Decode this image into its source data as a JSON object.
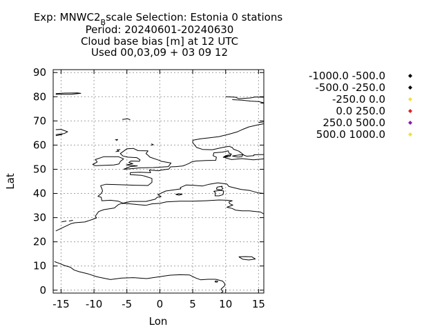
{
  "chart_data": {
    "type": "scatter",
    "title": {
      "line1_pre": "Exp: MNWC2",
      "line1_sub": "B",
      "line1_post": "scale   Selection: Estonia      0 stations",
      "line2": "Period: 20240601-20240630",
      "line3": "Cloud base bias [m] at  12 UTC",
      "line4": "Used 00,03,09 + 03 09 12"
    },
    "xlabel": "Lon",
    "ylabel": "Lat",
    "xlim": [
      -16.2,
      15.8
    ],
    "ylim": [
      -1.2,
      91.2
    ],
    "xticks": [
      -15,
      -10,
      -5,
      0,
      5,
      10,
      15
    ],
    "yticks": [
      0,
      10,
      20,
      30,
      40,
      50,
      60,
      70,
      80,
      90
    ],
    "xtick_labels": [
      "-15",
      "-10",
      "-5",
      "0",
      "5",
      "10",
      "15"
    ],
    "ytick_labels": [
      "0",
      "10",
      "20",
      "30",
      "40",
      "50",
      "60",
      "70",
      "80",
      "90"
    ],
    "grid": true,
    "legend_position": "right",
    "series": [
      {
        "name": "-1000.0 -500.0",
        "color": "#000000",
        "points": []
      },
      {
        "name": "-500.0 -250.0",
        "color": "#000000",
        "points": []
      },
      {
        "name": "-250.0 0.0",
        "color": "#f0e040",
        "points": []
      },
      {
        "name": "0.0 250.0",
        "color": "#e02020",
        "points": []
      },
      {
        "name": "250.0 500.0",
        "color": "#8a1ab0",
        "points": []
      },
      {
        "name": "500.0 1000.0",
        "color": "#f0e040",
        "points": []
      }
    ],
    "coastlines": [
      [
        [
          -15.8,
          81.3
        ],
        [
          -14.5,
          81.5
        ],
        [
          -12.5,
          81.6
        ],
        [
          -12.0,
          81.4
        ],
        [
          -13.5,
          81.0
        ],
        [
          -15.8,
          81.0
        ]
      ],
      [
        [
          -5.7,
          70.6
        ],
        [
          -4.9,
          70.9
        ],
        [
          -4.5,
          70.5
        ]
      ],
      [
        [
          -15.8,
          66.4
        ],
        [
          -15.0,
          66.5
        ],
        [
          -14.0,
          65.5
        ],
        [
          -14.5,
          64.8
        ],
        [
          -15.8,
          64.3
        ]
      ],
      [
        [
          -15.8,
          63.9
        ],
        [
          -14.8,
          64.4
        ]
      ],
      [
        [
          -6.8,
          62.2
        ],
        [
          -6.4,
          62.3
        ],
        [
          -6.6,
          61.8
        ]
      ],
      [
        [
          -9.5,
          53.0
        ],
        [
          -9.8,
          54.0
        ],
        [
          -8.5,
          55.2
        ],
        [
          -6.3,
          55.2
        ],
        [
          -5.5,
          54.3
        ],
        [
          -6.0,
          53.2
        ],
        [
          -6.2,
          52.2
        ],
        [
          -7.0,
          51.8
        ],
        [
          -9.8,
          51.5
        ],
        [
          -10.2,
          52.0
        ],
        [
          -9.5,
          53.0
        ]
      ],
      [
        [
          -5.5,
          50.0
        ],
        [
          -4.0,
          50.3
        ],
        [
          -3.0,
          50.6
        ],
        [
          -1.0,
          50.7
        ],
        [
          1.3,
          51.1
        ],
        [
          1.7,
          52.6
        ],
        [
          0.2,
          53.3
        ],
        [
          0.0,
          53.6
        ],
        [
          -1.5,
          55.0
        ],
        [
          -1.8,
          55.8
        ],
        [
          -2.1,
          56.5
        ],
        [
          -1.8,
          57.6
        ],
        [
          -3.3,
          57.7
        ],
        [
          -4.0,
          58.6
        ],
        [
          -5.0,
          58.5
        ],
        [
          -5.5,
          57.5
        ],
        [
          -6.0,
          56.5
        ],
        [
          -5.6,
          55.5
        ],
        [
          -4.9,
          55.0
        ],
        [
          -3.5,
          54.8
        ],
        [
          -3.0,
          53.9
        ],
        [
          -3.1,
          53.3
        ],
        [
          -4.4,
          53.4
        ],
        [
          -4.7,
          52.8
        ],
        [
          -4.1,
          52.3
        ],
        [
          -5.1,
          51.8
        ],
        [
          -3.4,
          51.4
        ],
        [
          -4.5,
          51.1
        ],
        [
          -5.5,
          50.0
        ]
      ],
      [
        [
          -6.0,
          58.2
        ],
        [
          -6.5,
          58.0
        ],
        [
          -6.2,
          57.5
        ],
        [
          -6.7,
          57.3
        ]
      ],
      [
        [
          -1.3,
          60.5
        ],
        [
          -1.0,
          60.2
        ],
        [
          -1.3,
          59.9
        ]
      ],
      [
        [
          -4.5,
          48.6
        ],
        [
          -3.0,
          48.8
        ],
        [
          -1.4,
          48.6
        ],
        [
          -1.6,
          49.7
        ],
        [
          -0.2,
          49.4
        ],
        [
          0.3,
          49.7
        ],
        [
          1.4,
          50.1
        ],
        [
          1.6,
          51.0
        ],
        [
          2.5,
          51.1
        ],
        [
          3.5,
          51.4
        ],
        [
          4.0,
          51.9
        ],
        [
          4.5,
          52.5
        ],
        [
          4.8,
          53.0
        ],
        [
          5.5,
          53.4
        ],
        [
          7.0,
          53.6
        ],
        [
          8.5,
          53.7
        ],
        [
          8.6,
          55.0
        ],
        [
          8.1,
          55.6
        ],
        [
          8.2,
          56.8
        ],
        [
          9.5,
          57.1
        ],
        [
          10.4,
          57.6
        ],
        [
          10.5,
          56.7
        ],
        [
          10.9,
          56.2
        ],
        [
          9.8,
          55.0
        ],
        [
          10.0,
          54.7
        ],
        [
          10.9,
          54.0
        ],
        [
          12.5,
          54.4
        ],
        [
          14.2,
          53.9
        ],
        [
          15.8,
          54.3
        ]
      ],
      [
        [
          -9.0,
          43.2
        ],
        [
          -8.2,
          43.8
        ],
        [
          -6.0,
          43.6
        ],
        [
          -3.8,
          43.4
        ],
        [
          -1.8,
          43.3
        ],
        [
          -1.2,
          44.6
        ],
        [
          -1.2,
          46.2
        ],
        [
          -2.2,
          47.1
        ],
        [
          -2.8,
          47.5
        ],
        [
          -4.5,
          47.8
        ],
        [
          -4.5,
          48.6
        ]
      ],
      [
        [
          -9.0,
          43.2
        ],
        [
          -8.8,
          42.0
        ],
        [
          -8.7,
          41.0
        ],
        [
          -8.9,
          40.0
        ],
        [
          -9.4,
          38.8
        ],
        [
          -8.9,
          38.4
        ],
        [
          -8.8,
          37.0
        ],
        [
          -7.5,
          37.2
        ],
        [
          -6.3,
          36.8
        ],
        [
          -5.6,
          36.0
        ],
        [
          -4.4,
          36.7
        ],
        [
          -2.1,
          36.7
        ],
        [
          -0.7,
          37.6
        ],
        [
          -0.4,
          38.4
        ],
        [
          0.2,
          38.7
        ],
        [
          -0.3,
          39.5
        ],
        [
          0.9,
          41.0
        ],
        [
          3.2,
          41.9
        ],
        [
          3.1,
          42.4
        ],
        [
          4.0,
          43.5
        ],
        [
          5.0,
          43.4
        ],
        [
          6.5,
          43.1
        ],
        [
          7.5,
          43.8
        ],
        [
          8.8,
          44.4
        ],
        [
          10.2,
          43.9
        ],
        [
          10.5,
          42.9
        ],
        [
          11.2,
          42.4
        ],
        [
          12.3,
          41.7
        ],
        [
          13.7,
          41.2
        ],
        [
          15.0,
          40.2
        ],
        [
          15.8,
          40.0
        ]
      ],
      [
        [
          9.2,
          41.3
        ],
        [
          9.7,
          41.0
        ],
        [
          9.6,
          39.5
        ],
        [
          9.0,
          39.0
        ],
        [
          8.4,
          39.0
        ],
        [
          8.4,
          40.5
        ],
        [
          8.2,
          40.9
        ],
        [
          9.2,
          41.3
        ]
      ],
      [
        [
          9.5,
          43.0
        ],
        [
          9.4,
          42.6
        ],
        [
          9.6,
          42.0
        ],
        [
          9.3,
          41.4
        ],
        [
          8.6,
          41.8
        ],
        [
          8.7,
          42.6
        ],
        [
          9.5,
          43.0
        ]
      ],
      [
        [
          2.4,
          39.6
        ],
        [
          3.0,
          39.9
        ],
        [
          3.4,
          39.6
        ],
        [
          2.9,
          39.3
        ],
        [
          2.4,
          39.6
        ]
      ],
      [
        [
          -5.9,
          35.8
        ],
        [
          -6.3,
          35.4
        ],
        [
          -6.9,
          34.0
        ],
        [
          -8.5,
          33.3
        ],
        [
          -9.3,
          32.5
        ],
        [
          -9.8,
          30.6
        ],
        [
          -9.6,
          29.9
        ],
        [
          -10.2,
          29.3
        ],
        [
          -11.4,
          28.2
        ],
        [
          -12.9,
          27.9
        ],
        [
          -13.5,
          27.5
        ],
        [
          -14.5,
          26.2
        ],
        [
          -15.8,
          24.5
        ]
      ],
      [
        [
          -5.9,
          35.8
        ],
        [
          -5.3,
          35.9
        ],
        [
          -3.0,
          35.3
        ],
        [
          -2.1,
          35.1
        ],
        [
          -1.2,
          35.7
        ],
        [
          0.0,
          35.9
        ],
        [
          1.0,
          36.5
        ],
        [
          3.0,
          36.8
        ],
        [
          5.0,
          36.8
        ],
        [
          7.0,
          37.0
        ],
        [
          9.0,
          37.3
        ],
        [
          10.2,
          37.2
        ],
        [
          11.0,
          37.0
        ],
        [
          10.5,
          36.5
        ],
        [
          10.6,
          35.8
        ],
        [
          11.1,
          35.2
        ],
        [
          10.2,
          34.3
        ],
        [
          11.0,
          33.8
        ],
        [
          11.5,
          33.1
        ],
        [
          12.5,
          32.8
        ],
        [
          13.6,
          32.8
        ],
        [
          15.3,
          32.3
        ],
        [
          15.8,
          31.5
        ]
      ],
      [
        [
          -13.8,
          28.6
        ],
        [
          -13.2,
          28.9
        ]
      ],
      [
        [
          -14.9,
          28.3
        ],
        [
          -14.2,
          28.6
        ]
      ],
      [
        [
          -16.0,
          11.8
        ],
        [
          -15.2,
          11.0
        ],
        [
          -14.5,
          10.2
        ],
        [
          -13.6,
          9.5
        ],
        [
          -13.0,
          8.3
        ],
        [
          -12.2,
          7.6
        ],
        [
          -11.0,
          6.8
        ],
        [
          -9.5,
          5.5
        ],
        [
          -7.5,
          4.4
        ],
        [
          -5.8,
          5.0
        ],
        [
          -4.0,
          5.2
        ],
        [
          -2.0,
          4.8
        ],
        [
          0.0,
          5.6
        ],
        [
          1.5,
          6.2
        ],
        [
          3.0,
          6.4
        ],
        [
          4.5,
          6.3
        ],
        [
          5.5,
          5.0
        ],
        [
          6.2,
          4.3
        ],
        [
          7.3,
          4.5
        ],
        [
          8.5,
          4.5
        ],
        [
          9.5,
          3.8
        ],
        [
          9.8,
          3.0
        ],
        [
          9.9,
          2.0
        ],
        [
          9.6,
          1.2
        ],
        [
          9.3,
          0.4
        ],
        [
          9.6,
          -0.6
        ],
        [
          9.3,
          -1.2
        ]
      ],
      [
        [
          8.4,
          3.8
        ],
        [
          8.8,
          3.7
        ],
        [
          8.7,
          3.3
        ],
        [
          8.4,
          3.4
        ],
        [
          8.4,
          3.8
        ]
      ],
      [
        [
          12.0,
          13.8
        ],
        [
          12.6,
          12.8
        ],
        [
          13.5,
          12.5
        ],
        [
          14.5,
          12.9
        ],
        [
          14.0,
          13.8
        ],
        [
          13.0,
          13.9
        ],
        [
          12.0,
          13.8
        ]
      ],
      [
        [
          5.0,
          62.0
        ],
        [
          5.0,
          61.0
        ],
        [
          5.3,
          60.0
        ],
        [
          5.6,
          59.0
        ],
        [
          6.5,
          58.2
        ],
        [
          8.0,
          58.1
        ],
        [
          9.5,
          59.0
        ],
        [
          10.5,
          59.5
        ],
        [
          11.0,
          59.0
        ],
        [
          11.2,
          58.3
        ],
        [
          12.0,
          57.5
        ],
        [
          12.5,
          56.5
        ],
        [
          12.8,
          55.8
        ],
        [
          13.2,
          55.4
        ],
        [
          14.3,
          55.6
        ],
        [
          14.3,
          56.0
        ],
        [
          15.8,
          56.1
        ]
      ],
      [
        [
          5.0,
          62.0
        ],
        [
          6.2,
          62.6
        ],
        [
          7.5,
          63.0
        ],
        [
          9.0,
          63.5
        ],
        [
          10.5,
          64.5
        ],
        [
          11.8,
          65.5
        ],
        [
          12.6,
          66.5
        ],
        [
          13.5,
          67.5
        ],
        [
          14.8,
          68.3
        ],
        [
          15.8,
          68.8
        ]
      ],
      [
        [
          15.0,
          69.3
        ],
        [
          15.8,
          69.6
        ]
      ],
      [
        [
          10.0,
          80.0
        ],
        [
          11.5,
          79.8
        ],
        [
          12.0,
          79.2
        ],
        [
          13.8,
          79.5
        ],
        [
          14.5,
          79.9
        ],
        [
          15.8,
          79.8
        ]
      ],
      [
        [
          11.0,
          78.8
        ],
        [
          12.5,
          78.6
        ],
        [
          13.8,
          78.2
        ],
        [
          15.0,
          78.0
        ],
        [
          15.8,
          77.5
        ]
      ],
      [
        [
          15.3,
          77.4
        ],
        [
          15.8,
          77.3
        ]
      ],
      [
        [
          9.6,
          54.9
        ],
        [
          10.0,
          55.0
        ],
        [
          10.6,
          55.3
        ],
        [
          10.8,
          55.6
        ],
        [
          10.5,
          55.9
        ],
        [
          10.0,
          55.6
        ],
        [
          9.6,
          54.9
        ]
      ],
      [
        [
          11.0,
          55.5
        ],
        [
          12.0,
          55.9
        ],
        [
          12.6,
          56.0
        ],
        [
          12.5,
          55.3
        ],
        [
          11.9,
          55.0
        ],
        [
          11.0,
          55.5
        ]
      ]
    ]
  }
}
